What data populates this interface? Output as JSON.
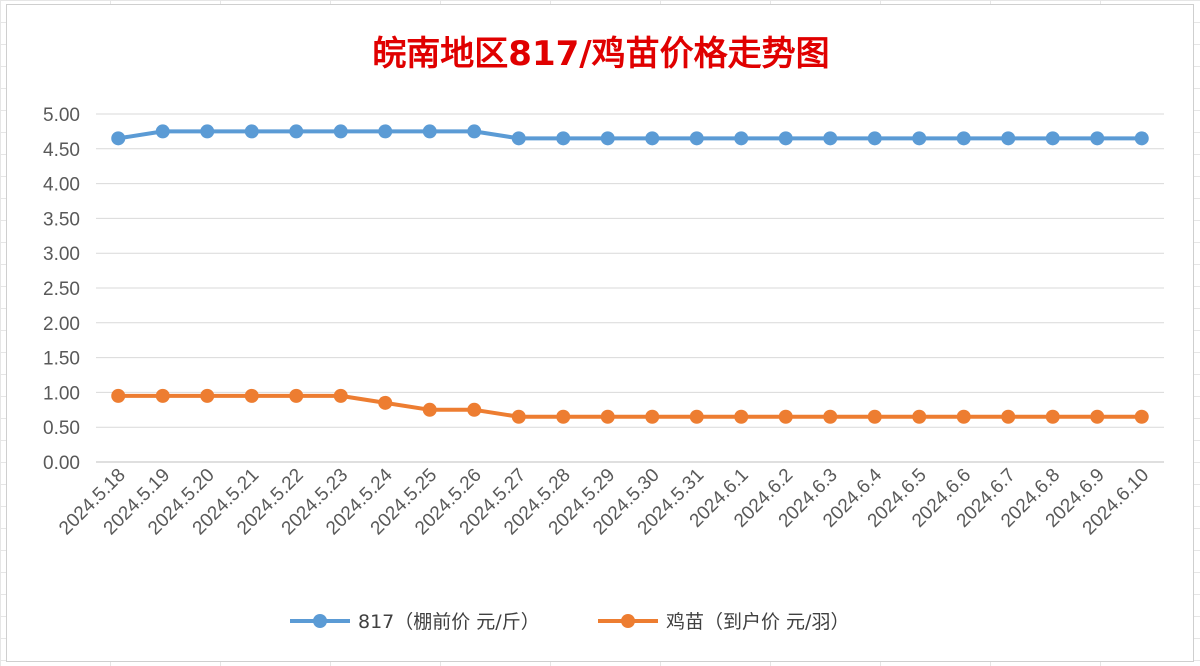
{
  "chart_data": {
    "type": "line",
    "title": "皖南地区817/鸡苗价格走势图",
    "title_color": "#e00000",
    "xlabel": "",
    "ylabel": "",
    "categories": [
      "2024.5.18",
      "2024.5.19",
      "2024.5.20",
      "2024.5.21",
      "2024.5.22",
      "2024.5.23",
      "2024.5.24",
      "2024.5.25",
      "2024.5.26",
      "2024.5.27",
      "2024.5.28",
      "2024.5.29",
      "2024.5.30",
      "2024.5.31",
      "2024.6.1",
      "2024.6.2",
      "2024.6.3",
      "2024.6.4",
      "2024.6.5",
      "2024.6.6",
      "2024.6.7",
      "2024.6.8",
      "2024.6.9",
      "2024.6.10"
    ],
    "y_ticks": [
      "0.00",
      "0.50",
      "1.00",
      "1.50",
      "2.00",
      "2.50",
      "3.00",
      "3.50",
      "4.00",
      "4.50",
      "5.00"
    ],
    "ylim": [
      0,
      5
    ],
    "grid": true,
    "legend_position": "bottom",
    "series": [
      {
        "name": "817（棚前价 元/斤）",
        "color": "#5b9bd5",
        "values": [
          4.65,
          4.75,
          4.75,
          4.75,
          4.75,
          4.75,
          4.75,
          4.75,
          4.75,
          4.65,
          4.65,
          4.65,
          4.65,
          4.65,
          4.65,
          4.65,
          4.65,
          4.65,
          4.65,
          4.65,
          4.65,
          4.65,
          4.65,
          4.65
        ]
      },
      {
        "name": "鸡苗（到户价 元/羽）",
        "color": "#ed7d31",
        "values": [
          0.95,
          0.95,
          0.95,
          0.95,
          0.95,
          0.95,
          0.85,
          0.75,
          0.75,
          0.65,
          0.65,
          0.65,
          0.65,
          0.65,
          0.65,
          0.65,
          0.65,
          0.65,
          0.65,
          0.65,
          0.65,
          0.65,
          0.65,
          0.65
        ]
      }
    ]
  }
}
